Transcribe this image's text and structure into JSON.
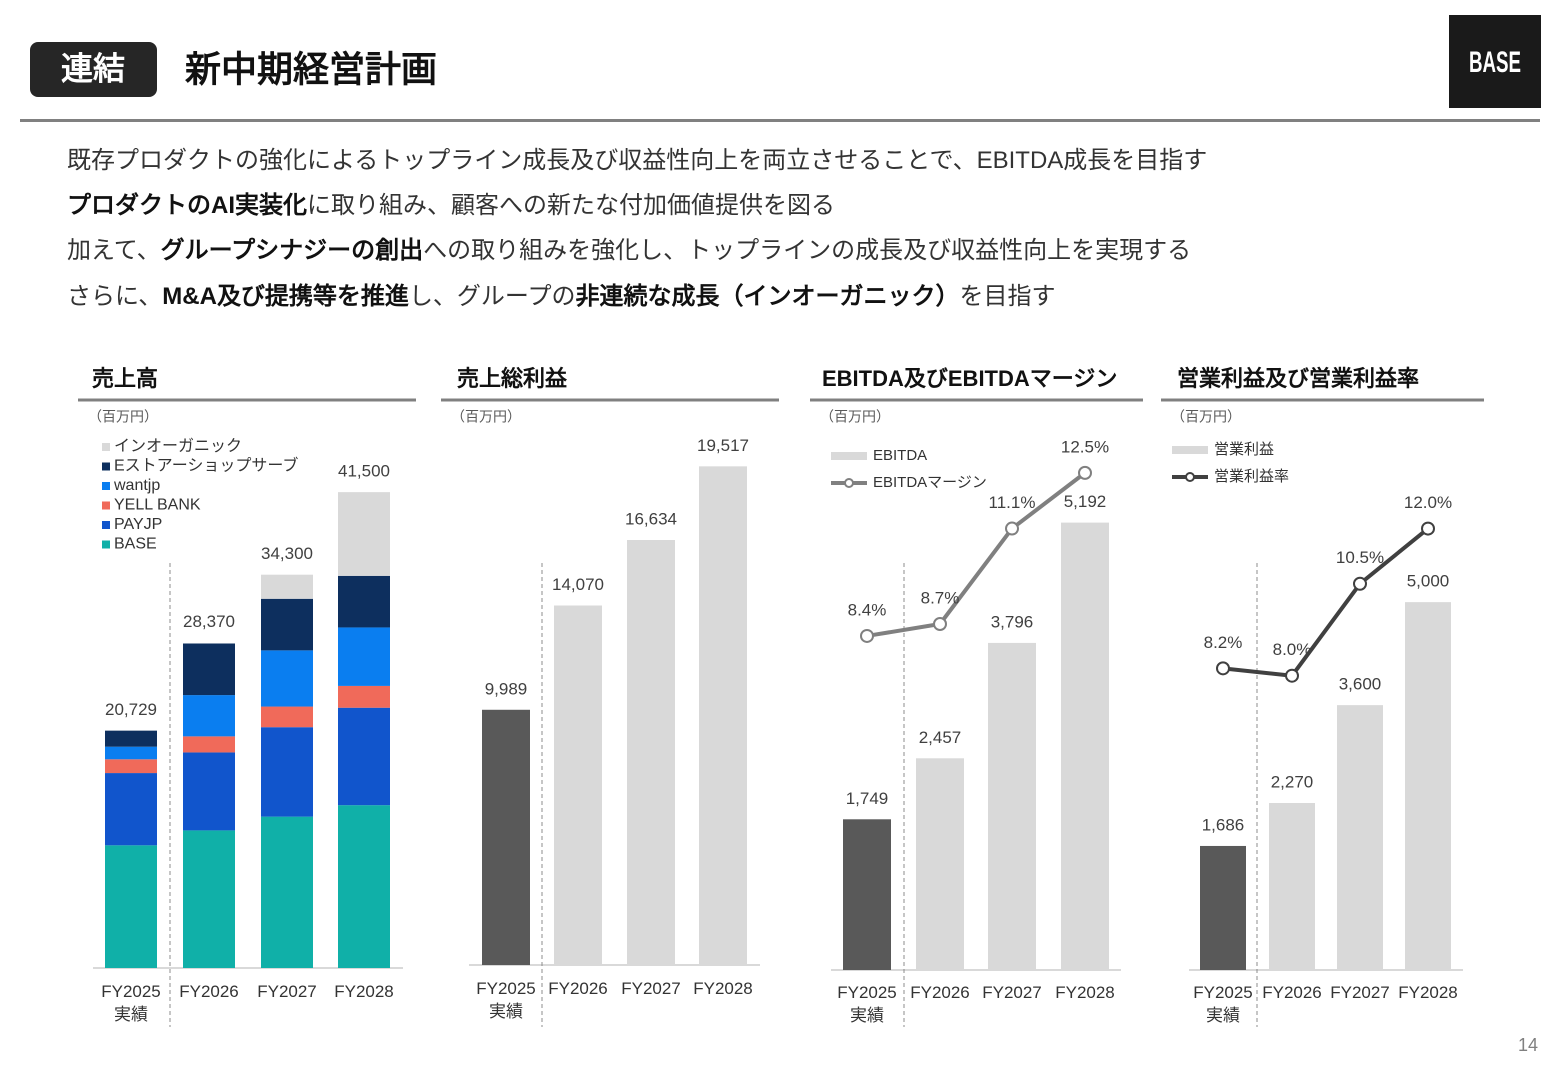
{
  "header": {
    "badge": "連結",
    "title": "新中期経営計画",
    "logo": "BASE"
  },
  "body": {
    "lines": [
      [
        {
          "text": "既存プロダクトの強化によるトップライン成長及び収益性向上を両立させることで、EBITDA成長を目指す",
          "bold": false
        }
      ],
      [
        {
          "text": "プロダクトのAI実装化",
          "bold": true
        },
        {
          "text": "に取り組み、顧客への新たな付加価値提供を図る",
          "bold": false
        }
      ],
      [
        {
          "text": "加えて、",
          "bold": false
        },
        {
          "text": "グループシナジーの創出",
          "bold": true
        },
        {
          "text": "への取り組みを強化し、トップラインの成長及び収益性向上を実現する",
          "bold": false
        }
      ],
      [
        {
          "text": "さらに、",
          "bold": false
        },
        {
          "text": "M&A及び提携等を推進",
          "bold": true
        },
        {
          "text": "し、グループの",
          "bold": false
        },
        {
          "text": "非連続な成長（インオーガニック）",
          "bold": true
        },
        {
          "text": "を目指す",
          "bold": false
        }
      ]
    ]
  },
  "chart_data": [
    {
      "type": "stacked_bar",
      "title": "売上高",
      "unit_label": "（百万円）",
      "categories": [
        "FY2025\n実績",
        "FY2026",
        "FY2027",
        "FY2028"
      ],
      "series": [
        {
          "name": "BASE",
          "color": "#10b0a8",
          "values": [
            10700,
            12000,
            13200,
            14200
          ]
        },
        {
          "name": "PAYJP",
          "color": "#1155cc",
          "values": [
            6300,
            6800,
            7800,
            8500
          ]
        },
        {
          "name": "YELL BANK",
          "color": "#f06a5a",
          "values": [
            1200,
            1400,
            1800,
            1900
          ]
        },
        {
          "name": "wantjp",
          "color": "#0a7ef0",
          "values": [
            1100,
            3600,
            4900,
            5100
          ]
        },
        {
          "name": "Eストアーショップサーブ",
          "color": "#0d2f5e",
          "values": [
            1400,
            4500,
            4500,
            4500
          ]
        },
        {
          "name": "インオーガニック",
          "color": "#d9d9d9",
          "values": [
            null,
            null,
            2100,
            7300
          ]
        }
      ],
      "totals": [
        20729,
        28370,
        34300,
        41500
      ],
      "total_labels": [
        "20,729",
        "28,370",
        "34,300",
        "41,500"
      ],
      "ylim": [
        0,
        45000
      ]
    },
    {
      "type": "bar",
      "title": "売上総利益",
      "unit_label": "（百万円）",
      "categories": [
        "FY2025\n実績",
        "FY2026",
        "FY2027",
        "FY2028"
      ],
      "values": [
        9989,
        14070,
        16634,
        19517
      ],
      "value_labels": [
        "9,989",
        "14,070",
        "16,634",
        "19,517"
      ],
      "colors": [
        "#595959",
        "#d9d9d9",
        "#d9d9d9",
        "#d9d9d9"
      ],
      "ylim": [
        0,
        20000
      ]
    },
    {
      "type": "bar_line",
      "title": "EBITDA及びEBITDAマージン",
      "unit_label": "（百万円）",
      "categories": [
        "FY2025\n実績",
        "FY2026",
        "FY2027",
        "FY2028"
      ],
      "series": [
        {
          "name": "EBITDA",
          "color": "#d9d9d9",
          "colors": [
            "#595959",
            "#d9d9d9",
            "#d9d9d9",
            "#d9d9d9"
          ],
          "values": [
            1749,
            2457,
            3796,
            5192
          ],
          "value_labels": [
            "1,749",
            "2,457",
            "3,796",
            "5,192"
          ]
        },
        {
          "name": "EBITDAマージン",
          "color": "#808080",
          "axis": "y2",
          "values": [
            8.4,
            8.7,
            11.1,
            12.5
          ],
          "value_labels": [
            "8.4%",
            "8.7%",
            "11.1%",
            "12.5%"
          ]
        }
      ],
      "ylim": [
        0,
        6000
      ],
      "y2lim": [
        0,
        13
      ]
    },
    {
      "type": "bar_line",
      "title": "営業利益及び営業利益率",
      "unit_label": "（百万円）",
      "categories": [
        "FY2025\n実績",
        "FY2026",
        "FY2027",
        "FY2028"
      ],
      "series": [
        {
          "name": "営業利益",
          "color": "#d9d9d9",
          "colors": [
            "#595959",
            "#d9d9d9",
            "#d9d9d9",
            "#d9d9d9"
          ],
          "values": [
            1686,
            2270,
            3600,
            5000
          ],
          "value_labels": [
            "1,686",
            "2,270",
            "3,600",
            "5,000"
          ]
        },
        {
          "name": "営業利益率",
          "color": "#404040",
          "axis": "y2",
          "values": [
            8.2,
            8.0,
            10.5,
            12.0
          ],
          "value_labels": [
            "8.2%",
            "8.0%",
            "10.5%",
            "12.0%"
          ]
        }
      ],
      "ylim": [
        0,
        7000
      ],
      "y2lim": [
        0,
        14
      ]
    }
  ],
  "page_number": "14"
}
